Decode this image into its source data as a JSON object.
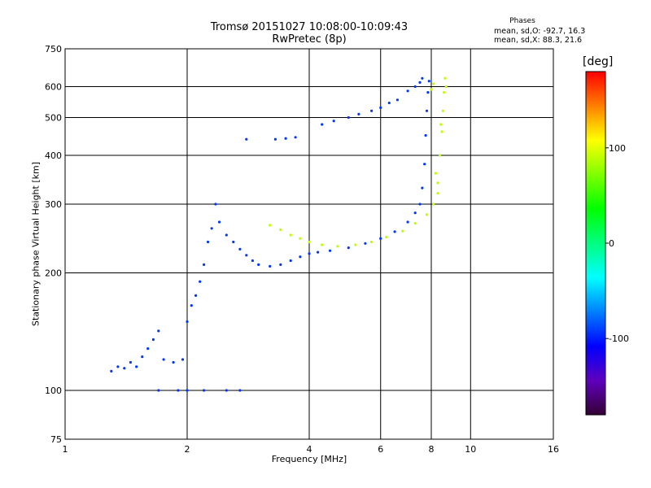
{
  "chart_data": {
    "type": "scatter",
    "title": "Tromsø 20151027 10:08:00-10:09:43",
    "subtitle": "RwPretec (8p)",
    "xlabel": "Frequency [MHz]",
    "ylabel": "Stationary phase Virtual Height [km]",
    "xscale": "log",
    "yscale": "log",
    "xlim": [
      1,
      16
    ],
    "ylim": [
      75,
      750
    ],
    "x_ticks": [
      1,
      2,
      4,
      6,
      8,
      10,
      16
    ],
    "x_tick_labels": [
      "1",
      "2",
      "4",
      "6",
      "8",
      "10",
      "16"
    ],
    "y_ticks": [
      75,
      100,
      200,
      300,
      400,
      500,
      600,
      750
    ],
    "y_tick_labels": [
      "75",
      "100",
      "200",
      "300",
      "400",
      "500",
      "600",
      "750"
    ],
    "grid": true,
    "colorbar": {
      "label": "[deg]",
      "range": [
        -180,
        180
      ],
      "ticks": [
        -100,
        0,
        100
      ],
      "tick_labels": [
        "-100",
        "0",
        "100"
      ],
      "colormap": "rainbow"
    },
    "phase_stats": {
      "title": "Phases",
      "line_o": "mean, sd,O: -92.7, 16.3",
      "line_x": "mean, sd,X: 88.3, 21.6"
    },
    "series": [
      {
        "mode": "O",
        "phase_mean": -92.7,
        "points": [
          [
            1.3,
            112
          ],
          [
            1.35,
            115
          ],
          [
            1.4,
            114
          ],
          [
            1.45,
            118
          ],
          [
            1.5,
            115
          ],
          [
            1.55,
            122
          ],
          [
            1.6,
            128
          ],
          [
            1.65,
            135
          ],
          [
            1.7,
            142
          ],
          [
            1.75,
            120
          ],
          [
            1.85,
            118
          ],
          [
            1.95,
            120
          ],
          [
            2.0,
            150
          ],
          [
            2.05,
            165
          ],
          [
            2.1,
            175
          ],
          [
            2.15,
            190
          ],
          [
            2.2,
            210
          ],
          [
            2.25,
            240
          ],
          [
            2.3,
            260
          ],
          [
            2.35,
            300
          ],
          [
            2.4,
            270
          ],
          [
            2.5,
            250
          ],
          [
            2.6,
            240
          ],
          [
            2.7,
            230
          ],
          [
            2.8,
            222
          ],
          [
            2.9,
            215
          ],
          [
            3.0,
            210
          ],
          [
            3.2,
            208
          ],
          [
            3.4,
            210
          ],
          [
            3.6,
            215
          ],
          [
            3.8,
            220
          ],
          [
            4.0,
            224
          ],
          [
            4.2,
            226
          ],
          [
            4.5,
            228
          ],
          [
            5.0,
            232
          ],
          [
            5.5,
            238
          ],
          [
            6.0,
            245
          ],
          [
            6.5,
            255
          ],
          [
            7.0,
            270
          ],
          [
            7.3,
            285
          ],
          [
            7.5,
            300
          ],
          [
            7.6,
            330
          ],
          [
            7.7,
            380
          ],
          [
            7.75,
            450
          ],
          [
            7.8,
            520
          ],
          [
            7.85,
            580
          ],
          [
            7.9,
            620
          ],
          [
            1.7,
            100
          ],
          [
            1.9,
            100
          ],
          [
            2.0,
            100
          ],
          [
            2.2,
            100
          ],
          [
            2.5,
            100
          ],
          [
            2.7,
            100
          ],
          [
            3.3,
            440
          ],
          [
            3.5,
            442
          ],
          [
            3.7,
            445
          ],
          [
            2.8,
            440
          ],
          [
            5.7,
            520
          ],
          [
            6.0,
            530
          ],
          [
            6.3,
            545
          ],
          [
            6.6,
            555
          ],
          [
            7.0,
            585
          ],
          [
            7.3,
            600
          ],
          [
            7.5,
            615
          ],
          [
            7.6,
            630
          ],
          [
            4.3,
            480
          ],
          [
            4.6,
            490
          ],
          [
            5.0,
            500
          ],
          [
            5.3,
            510
          ]
        ]
      },
      {
        "mode": "X",
        "phase_mean": 88.3,
        "points": [
          [
            3.2,
            265
          ],
          [
            3.4,
            258
          ],
          [
            3.6,
            250
          ],
          [
            3.8,
            245
          ],
          [
            4.0,
            240
          ],
          [
            4.3,
            236
          ],
          [
            4.7,
            234
          ],
          [
            5.2,
            236
          ],
          [
            5.7,
            240
          ],
          [
            6.2,
            247
          ],
          [
            6.8,
            256
          ],
          [
            7.3,
            268
          ],
          [
            7.8,
            282
          ],
          [
            8.1,
            300
          ],
          [
            8.3,
            340
          ],
          [
            8.4,
            400
          ],
          [
            8.5,
            460
          ],
          [
            8.55,
            520
          ],
          [
            8.6,
            580
          ],
          [
            8.65,
            630
          ],
          [
            8.2,
            360
          ],
          [
            8.3,
            320
          ],
          [
            8.45,
            480
          ],
          [
            8.7,
            600
          ],
          [
            8.0,
            590
          ],
          [
            8.1,
            610
          ]
        ]
      }
    ]
  }
}
